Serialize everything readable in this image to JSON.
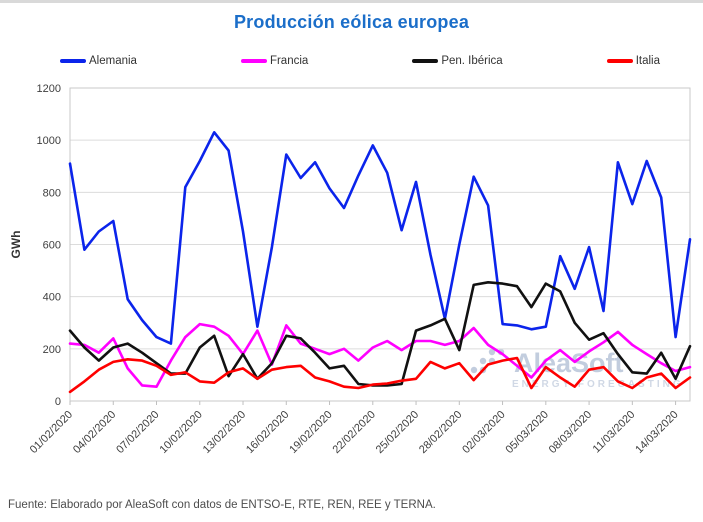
{
  "header": {
    "title": "Producción eólica europea",
    "title_color": "#1b6ec9"
  },
  "legend": {
    "items": [
      {
        "label": "Alemania",
        "color": "#0b24eb"
      },
      {
        "label": "Francia",
        "color": "#ff00ff"
      },
      {
        "label": "Pen. Ibérica",
        "color": "#111111"
      },
      {
        "label": "Italia",
        "color": "#fe0000"
      }
    ]
  },
  "watermark": {
    "name": "AleaSoft",
    "subtitle": "ENERGY FORECASTING",
    "color": "#b7c3d8"
  },
  "footer": {
    "source_text": "Fuente: Elaborado por AleaSoft con datos de ENTSO-E, RTE, REN, REE y TERNA."
  },
  "chart_data": {
    "type": "line",
    "title": "Producción eólica europea",
    "ylabel": "GWh",
    "ylim": [
      0,
      1200
    ],
    "y_ticks": [
      0,
      200,
      400,
      600,
      800,
      1000,
      1200
    ],
    "grid": "horizontal",
    "legend_position": "top",
    "frequency": "daily",
    "x": [
      "01/02/2020",
      "02/02/2020",
      "03/02/2020",
      "04/02/2020",
      "05/02/2020",
      "06/02/2020",
      "07/02/2020",
      "08/02/2020",
      "09/02/2020",
      "10/02/2020",
      "11/02/2020",
      "12/02/2020",
      "13/02/2020",
      "14/02/2020",
      "15/02/2020",
      "16/02/2020",
      "17/02/2020",
      "18/02/2020",
      "19/02/2020",
      "20/02/2020",
      "21/02/2020",
      "22/02/2020",
      "23/02/2020",
      "24/02/2020",
      "25/02/2020",
      "26/02/2020",
      "27/02/2020",
      "28/02/2020",
      "29/02/2020",
      "01/03/2020",
      "02/03/2020",
      "03/03/2020",
      "04/03/2020",
      "05/03/2020",
      "06/03/2020",
      "07/03/2020",
      "08/03/2020",
      "09/03/2020",
      "10/03/2020",
      "11/03/2020",
      "12/03/2020",
      "13/03/2020",
      "14/03/2020",
      "15/03/2020"
    ],
    "x_tick_every": 3,
    "x_tick_labels": [
      "01/02/2020",
      "04/02/2020",
      "07/02/2020",
      "10/02/2020",
      "13/02/2020",
      "16/02/2020",
      "19/02/2020",
      "22/02/2020",
      "25/02/2020",
      "28/02/2020",
      "02/03/2020",
      "05/03/2020",
      "08/03/2020",
      "11/03/2020",
      "14/03/2020"
    ],
    "series": [
      {
        "name": "Alemania",
        "color": "#0b24eb",
        "values": [
          910,
          580,
          650,
          690,
          390,
          310,
          245,
          220,
          820,
          920,
          1030,
          960,
          650,
          285,
          590,
          945,
          855,
          915,
          815,
          740,
          865,
          980,
          875,
          655,
          840,
          560,
          315,
          600,
          860,
          750,
          295,
          290,
          275,
          285,
          555,
          430,
          590,
          345,
          915,
          755,
          920,
          780,
          245,
          620
        ]
      },
      {
        "name": "Francia",
        "color": "#ff00ff",
        "values": [
          220,
          215,
          185,
          240,
          125,
          60,
          55,
          155,
          245,
          295,
          285,
          250,
          180,
          270,
          140,
          290,
          220,
          200,
          180,
          200,
          155,
          205,
          230,
          195,
          230,
          230,
          215,
          230,
          280,
          215,
          180,
          135,
          90,
          155,
          195,
          150,
          190,
          225,
          265,
          215,
          180,
          145,
          115,
          130
        ]
      },
      {
        "name": "Pen. Ibérica",
        "color": "#111111",
        "values": [
          270,
          205,
          155,
          205,
          220,
          185,
          145,
          105,
          105,
          205,
          250,
          95,
          180,
          85,
          145,
          250,
          240,
          185,
          125,
          135,
          65,
          60,
          60,
          65,
          270,
          290,
          315,
          195,
          445,
          455,
          450,
          440,
          360,
          450,
          420,
          300,
          235,
          260,
          180,
          110,
          105,
          185,
          85,
          210
        ]
      },
      {
        "name": "Italia",
        "color": "#fe0000",
        "values": [
          35,
          75,
          120,
          150,
          160,
          155,
          135,
          100,
          110,
          75,
          70,
          110,
          125,
          85,
          120,
          130,
          135,
          90,
          75,
          55,
          50,
          63,
          67,
          78,
          85,
          150,
          125,
          145,
          80,
          140,
          155,
          165,
          50,
          130,
          90,
          55,
          120,
          130,
          75,
          50,
          90,
          105,
          50,
          90
        ]
      }
    ]
  }
}
